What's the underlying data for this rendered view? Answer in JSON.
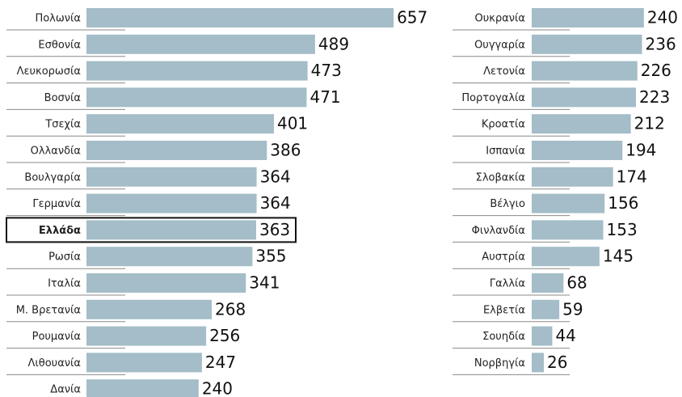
{
  "chart_data": [
    {
      "type": "bar",
      "orientation": "horizontal",
      "color": "#a4bdc8",
      "highlight": 8,
      "categories": [
        "Πολωνία",
        "Εσθονία",
        "Λευκορωσία",
        "Βοσνία",
        "Τσεχία",
        "Ολλανδία",
        "Βουλγαρία",
        "Γερμανία",
        "Ελλάδα",
        "Ρωσία",
        "Ιταλία",
        "Μ. Βρετανία",
        "Ρουμανία",
        "Λιθουανία",
        "Δανία"
      ],
      "values": [
        657,
        489,
        473,
        471,
        401,
        386,
        364,
        364,
        363,
        355,
        341,
        268,
        256,
        247,
        240
      ]
    },
    {
      "type": "bar",
      "orientation": "horizontal",
      "color": "#a4bdc8",
      "categories": [
        "Ουκρανία",
        "Ουγγαρία",
        "Λετονία",
        "Πορτογαλία",
        "Κροατία",
        "Ισπανία",
        "Σλοβακία",
        "Βέλγιο",
        "Φινλανδία",
        "Αυστρία",
        "Γαλλία",
        "Ελβετία",
        "Σουηδία",
        "Νορβηγία"
      ],
      "values": [
        240,
        236,
        226,
        223,
        212,
        194,
        174,
        156,
        153,
        145,
        68,
        59,
        44,
        26
      ]
    }
  ]
}
